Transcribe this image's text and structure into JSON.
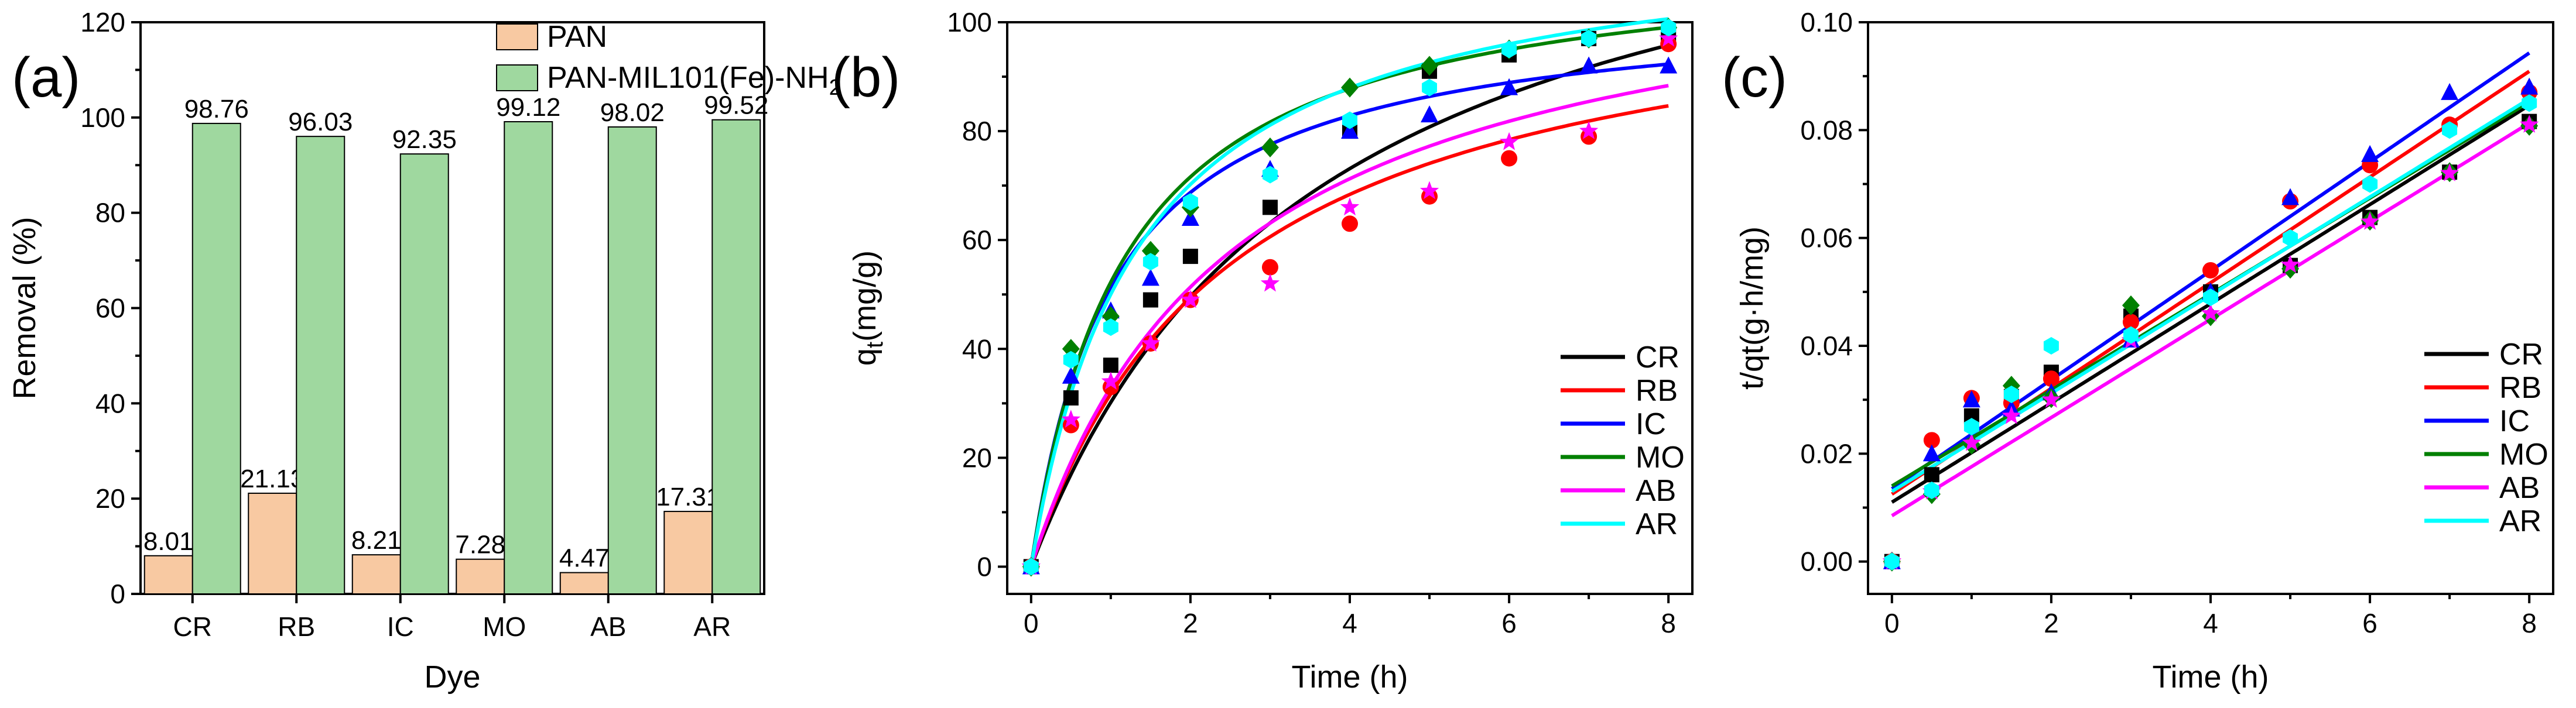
{
  "colors": {
    "PAN": "#F8C9A2",
    "MOF": "#9FD89F",
    "CR": "#000000",
    "RB": "#FF0000",
    "IC": "#0000FF",
    "MO": "#008000",
    "AB": "#FF00FF",
    "AR": "#00FFFF",
    "bar_edge": "#000000"
  },
  "chart_data": [
    {
      "id": "a",
      "panel_label": "(a)",
      "type": "bar",
      "title": "",
      "xlabel": "Dye",
      "ylabel": "Removal (%)",
      "ylim": [
        0,
        120
      ],
      "yticks": [
        0,
        20,
        40,
        60,
        80,
        100,
        120
      ],
      "categories": [
        "CR",
        "RB",
        "IC",
        "MO",
        "AB",
        "AR"
      ],
      "series": [
        {
          "name": "PAN",
          "color_key": "PAN",
          "values": [
            8.01,
            21.13,
            8.21,
            7.28,
            4.47,
            17.31
          ],
          "labels": [
            "8.01",
            "21.13",
            "8.21",
            "7.28",
            "4.47",
            "17.31"
          ]
        },
        {
          "name": "PAN-MIL101(Fe)-NH",
          "name_sub": "2",
          "color_key": "MOF",
          "values": [
            98.76,
            96.03,
            92.35,
            99.12,
            98.02,
            99.52
          ],
          "labels": [
            "98.76",
            "96.03",
            "92.35",
            "99.12",
            "98.02",
            "99.52"
          ]
        }
      ],
      "legend_position": "top-center"
    },
    {
      "id": "b",
      "panel_label": "(b)",
      "type": "scatter",
      "title": "",
      "xlabel": "Time (h)",
      "ylabel": "q",
      "ylabel_sub": "t",
      "ylabel_tail": "(mg/g)",
      "xlim": [
        -0.3,
        8.3
      ],
      "ylim": [
        -5,
        100
      ],
      "xticks": [
        0,
        2,
        4,
        6,
        8
      ],
      "yticks": [
        0,
        20,
        40,
        60,
        80,
        100
      ],
      "x": [
        0,
        0.5,
        1,
        1.5,
        2,
        3,
        4,
        5,
        6,
        7,
        8
      ],
      "series": [
        {
          "name": "CR",
          "marker": "square",
          "y": [
            0,
            31,
            37,
            49,
            57,
            66,
            80,
            91,
            94,
            97,
            98
          ],
          "fit": {
            "model": "pseudo-second-order",
            "qe": 138.9,
            "k": 0.002
          }
        },
        {
          "name": "RB",
          "marker": "circle",
          "y": [
            0,
            26,
            33,
            41,
            49,
            55,
            63,
            68,
            75,
            79,
            96
          ],
          "fit": {
            "model": "pseudo-second-order",
            "qe": 111.1,
            "k": 0.0036
          }
        },
        {
          "name": "IC",
          "marker": "triangle",
          "y": [
            0,
            35,
            47,
            53,
            64,
            73,
            80,
            83,
            88,
            92,
            92
          ],
          "fit": {
            "model": "pseudo-second-order",
            "qe": 104.2,
            "k": 0.0093
          }
        },
        {
          "name": "MO",
          "marker": "diamond",
          "y": [
            0,
            40,
            46,
            58,
            66,
            77,
            88,
            92,
            95,
            97,
            99
          ],
          "fit": {
            "model": "pseudo-second-order",
            "qe": 113.6,
            "k": 0.0075
          }
        },
        {
          "name": "AB",
          "marker": "star",
          "y": [
            0,
            27,
            34,
            41,
            49,
            52,
            66,
            69,
            78,
            80,
            97
          ],
          "fit": {
            "model": "pseudo-second-order",
            "qe": 116.3,
            "k": 0.0034
          }
        },
        {
          "name": "AR",
          "marker": "hexagon",
          "y": [
            0,
            38,
            44,
            56,
            67,
            72,
            82,
            88,
            95,
            97,
            99
          ],
          "fit": {
            "model": "pseudo-second-order",
            "qe": 117.6,
            "k": 0.0063
          }
        }
      ],
      "legend_position": "bottom-right"
    },
    {
      "id": "c",
      "panel_label": "(c)",
      "type": "scatter",
      "title": "",
      "xlabel": "Time (h)",
      "ylabel": "t/qt(g·h/mg)",
      "xlim": [
        -0.3,
        8.3
      ],
      "ylim": [
        -0.006,
        0.1
      ],
      "xticks": [
        0,
        2,
        4,
        6,
        8
      ],
      "yticks": [
        0.0,
        0.02,
        0.04,
        0.06,
        0.08,
        0.1
      ],
      "ytick_labels": [
        "0.00",
        "0.02",
        "0.04",
        "0.06",
        "0.08",
        "0.10"
      ],
      "x": [
        0,
        0.5,
        1,
        1.5,
        2,
        3,
        4,
        5,
        6,
        7,
        8
      ],
      "series": [
        {
          "name": "CR",
          "marker": "square",
          "y": [
            0,
            0.0161,
            0.027,
            0.0306,
            0.0351,
            0.0455,
            0.05,
            0.0549,
            0.0638,
            0.0722,
            0.0816
          ],
          "fit": {
            "model": "linear",
            "intercept": 0.011,
            "slope": 0.0092
          }
        },
        {
          "name": "RB",
          "marker": "circle",
          "y": [
            0,
            0.0225,
            0.0303,
            0.0294,
            0.0339,
            0.0444,
            0.054,
            0.0668,
            0.0735,
            0.081,
            0.087
          ],
          "fit": {
            "model": "linear",
            "intercept": 0.0125,
            "slope": 0.0098
          }
        },
        {
          "name": "IC",
          "marker": "triangle",
          "y": [
            0,
            0.02,
            0.03,
            0.0283,
            0.0313,
            0.0411,
            0.05,
            0.0675,
            0.0755,
            0.087,
            0.088
          ],
          "fit": {
            "model": "linear",
            "intercept": 0.0135,
            "slope": 0.0101
          }
        },
        {
          "name": "MO",
          "marker": "diamond",
          "y": [
            0,
            0.0125,
            0.0217,
            0.0326,
            0.0303,
            0.0475,
            0.0455,
            0.0543,
            0.0632,
            0.0722,
            0.0808
          ],
          "fit": {
            "model": "linear",
            "intercept": 0.014,
            "slope": 0.0089
          }
        },
        {
          "name": "AB",
          "marker": "star",
          "y": [
            0,
            0.013,
            0.022,
            0.027,
            0.03,
            0.041,
            0.046,
            0.055,
            0.063,
            0.072,
            0.081
          ],
          "fit": {
            "model": "linear",
            "intercept": 0.0085,
            "slope": 0.0091
          }
        },
        {
          "name": "AR",
          "marker": "hexagon",
          "y": [
            0,
            0.0132,
            0.025,
            0.031,
            0.04,
            0.042,
            0.049,
            0.06,
            0.07,
            0.08,
            0.085
          ],
          "fit": {
            "model": "linear",
            "intercept": 0.013,
            "slope": 0.0091
          }
        }
      ],
      "legend_position": "bottom-right"
    }
  ]
}
